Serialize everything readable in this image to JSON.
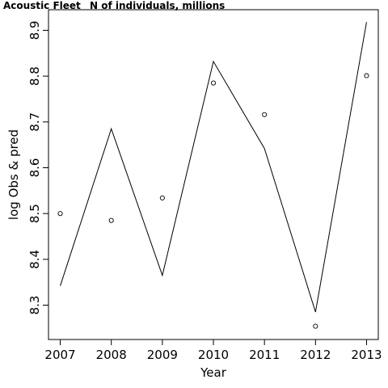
{
  "chart_data": {
    "type": "line",
    "title_left": "Acoustic Fleet",
    "title_right": "N of individuals, millions",
    "xlabel": "Year",
    "ylabel": "log Obs & pred",
    "x": [
      2007,
      2008,
      2009,
      2010,
      2011,
      2012,
      2013
    ],
    "xlim": [
      2006.77,
      2013.23
    ],
    "ylim": [
      8.225,
      8.945
    ],
    "xticks": [
      "2007",
      "2008",
      "2009",
      "2010",
      "2011",
      "2012",
      "2013"
    ],
    "yticks": [
      "8.3",
      "8.4",
      "8.5",
      "8.6",
      "8.7",
      "8.8",
      "8.9"
    ],
    "series": [
      {
        "style": "line",
        "values": [
          8.342,
          8.685,
          8.365,
          8.832,
          8.642,
          8.285,
          8.918
        ]
      },
      {
        "style": "points",
        "marker": "open-circle",
        "values": [
          8.5,
          8.485,
          8.534,
          8.785,
          8.716,
          8.254,
          8.801
        ]
      }
    ],
    "grid": false
  }
}
